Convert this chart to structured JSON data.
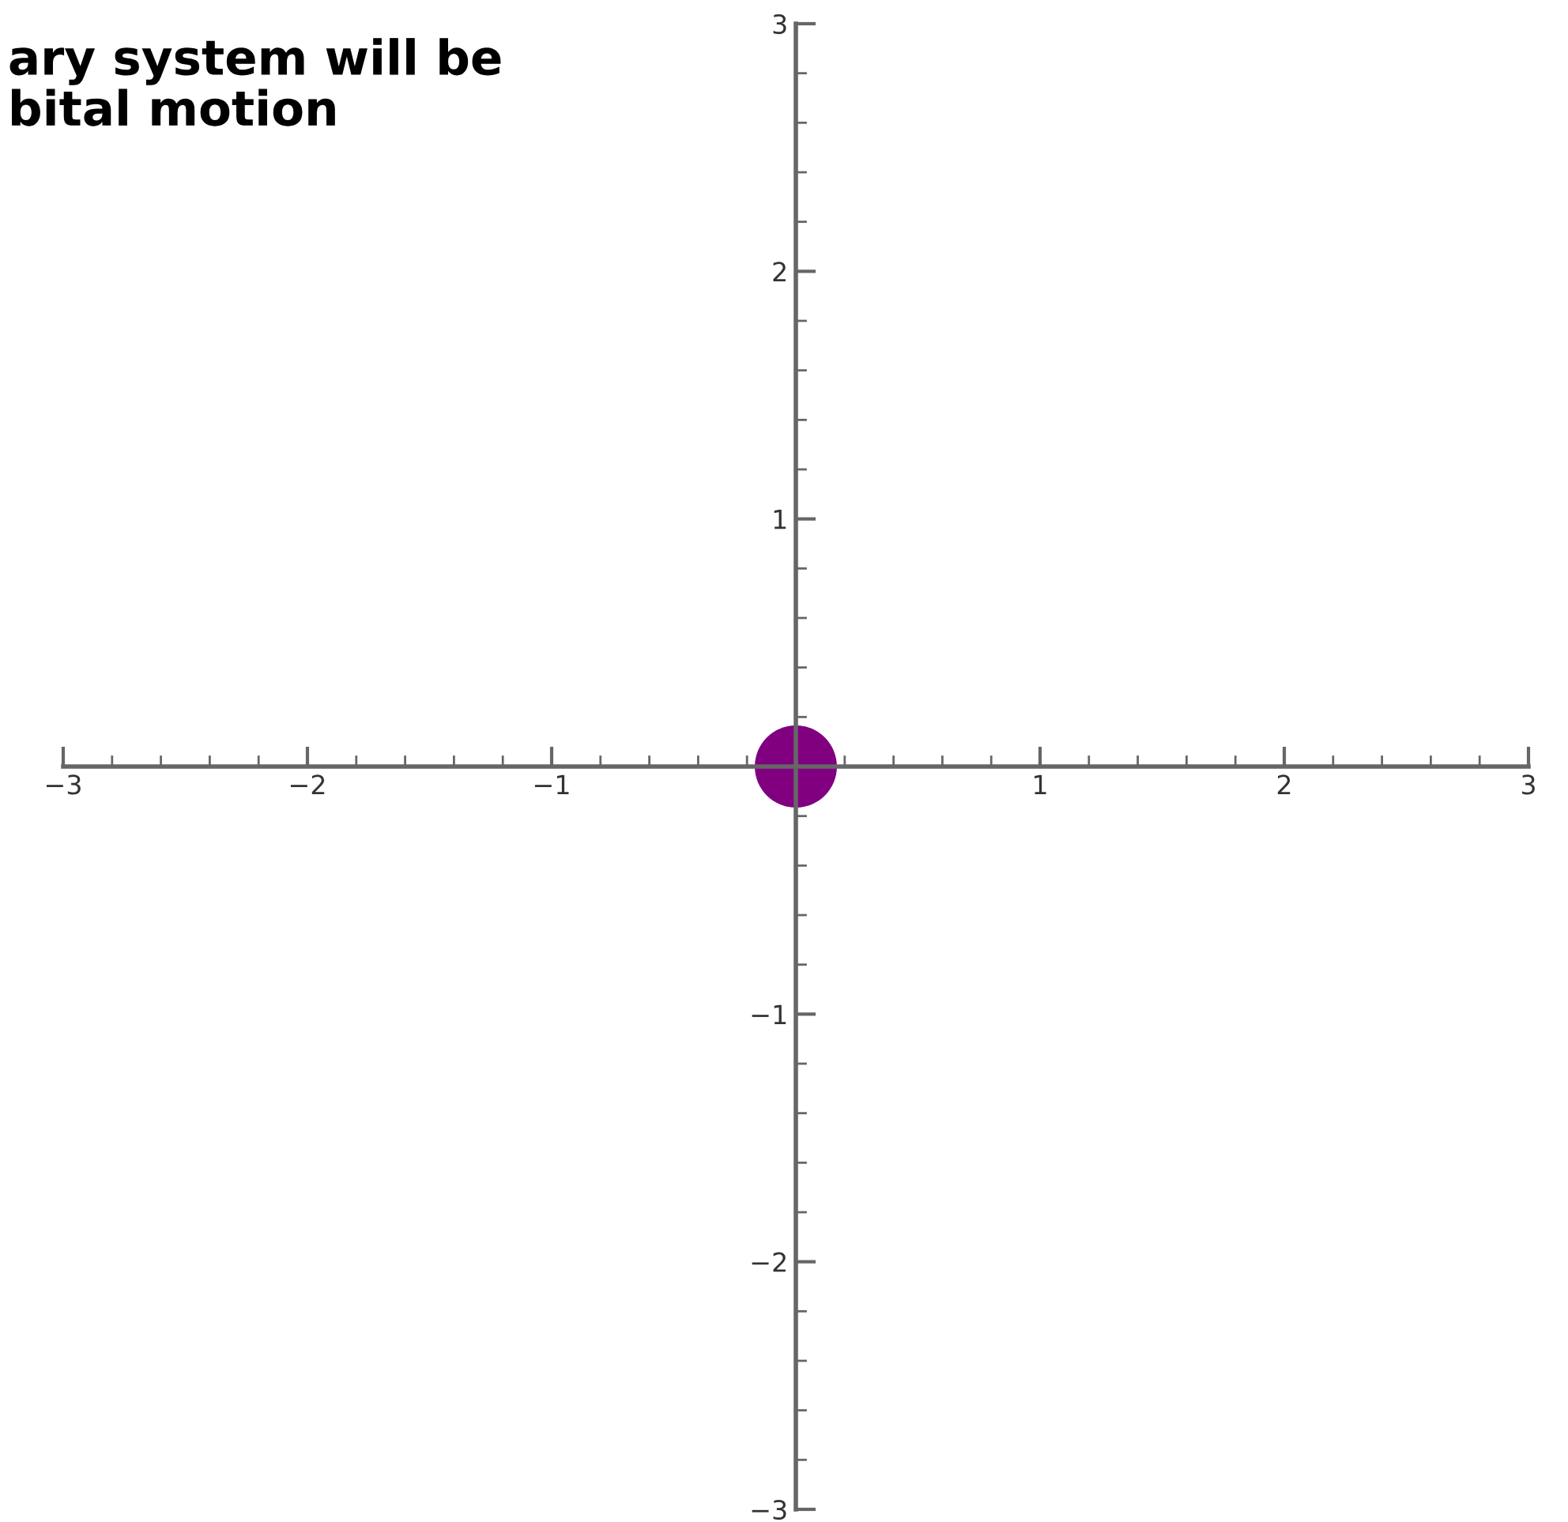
{
  "chart_data": {
    "type": "scatter",
    "title": "ary system will be\nbital motion",
    "x": [
      0
    ],
    "values": [
      0
    ],
    "color": "#800080",
    "xlim": [
      -3,
      3
    ],
    "ylim": [
      -3,
      3
    ],
    "xticks": [
      {
        "value": -3,
        "label": "−3"
      },
      {
        "value": -2,
        "label": "−2"
      },
      {
        "value": -1,
        "label": "−1"
      },
      {
        "value": 0,
        "label": null
      },
      1,
      2,
      3
    ],
    "yticks": [
      {
        "value": -3,
        "label": "−3"
      },
      {
        "value": -2,
        "label": "−2"
      },
      {
        "value": -1,
        "label": "−1"
      },
      {
        "value": 0,
        "label": null
      },
      1,
      2,
      3
    ],
    "marker": "circle",
    "grid": false,
    "legend": false
  }
}
